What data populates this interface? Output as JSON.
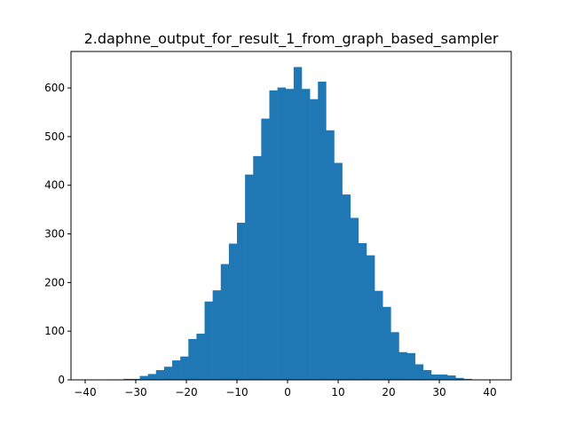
{
  "chart_data": {
    "type": "bar",
    "title": "2.daphne_output_for_result_1_from_graph_based_sampler",
    "xlabel": "",
    "ylabel": "",
    "xlim": [
      -42.8,
      44.2
    ],
    "ylim": [
      0,
      675
    ],
    "grid": false,
    "bar_color": "#1f77b4",
    "bin_start": -38.8,
    "bin_width": 1.6,
    "counts": [
      0,
      0,
      1,
      1,
      2,
      2,
      8,
      12,
      20,
      27,
      40,
      48,
      84,
      95,
      161,
      184,
      238,
      280,
      323,
      422,
      460,
      537,
      595,
      601,
      598,
      643,
      598,
      577,
      613,
      513,
      446,
      381,
      333,
      281,
      256,
      183,
      150,
      98,
      57,
      55,
      32,
      20,
      11,
      11,
      9,
      4,
      2,
      0,
      0,
      0
    ],
    "x_ticks": [
      -40,
      -30,
      -20,
      -10,
      0,
      10,
      20,
      30,
      40
    ],
    "x_tick_labels": [
      "−40",
      "−30",
      "−20",
      "−10",
      "0",
      "10",
      "20",
      "30",
      "40"
    ],
    "y_ticks": [
      0,
      100,
      200,
      300,
      400,
      500,
      600
    ],
    "y_tick_labels": [
      "0",
      "100",
      "200",
      "300",
      "400",
      "500",
      "600"
    ]
  }
}
